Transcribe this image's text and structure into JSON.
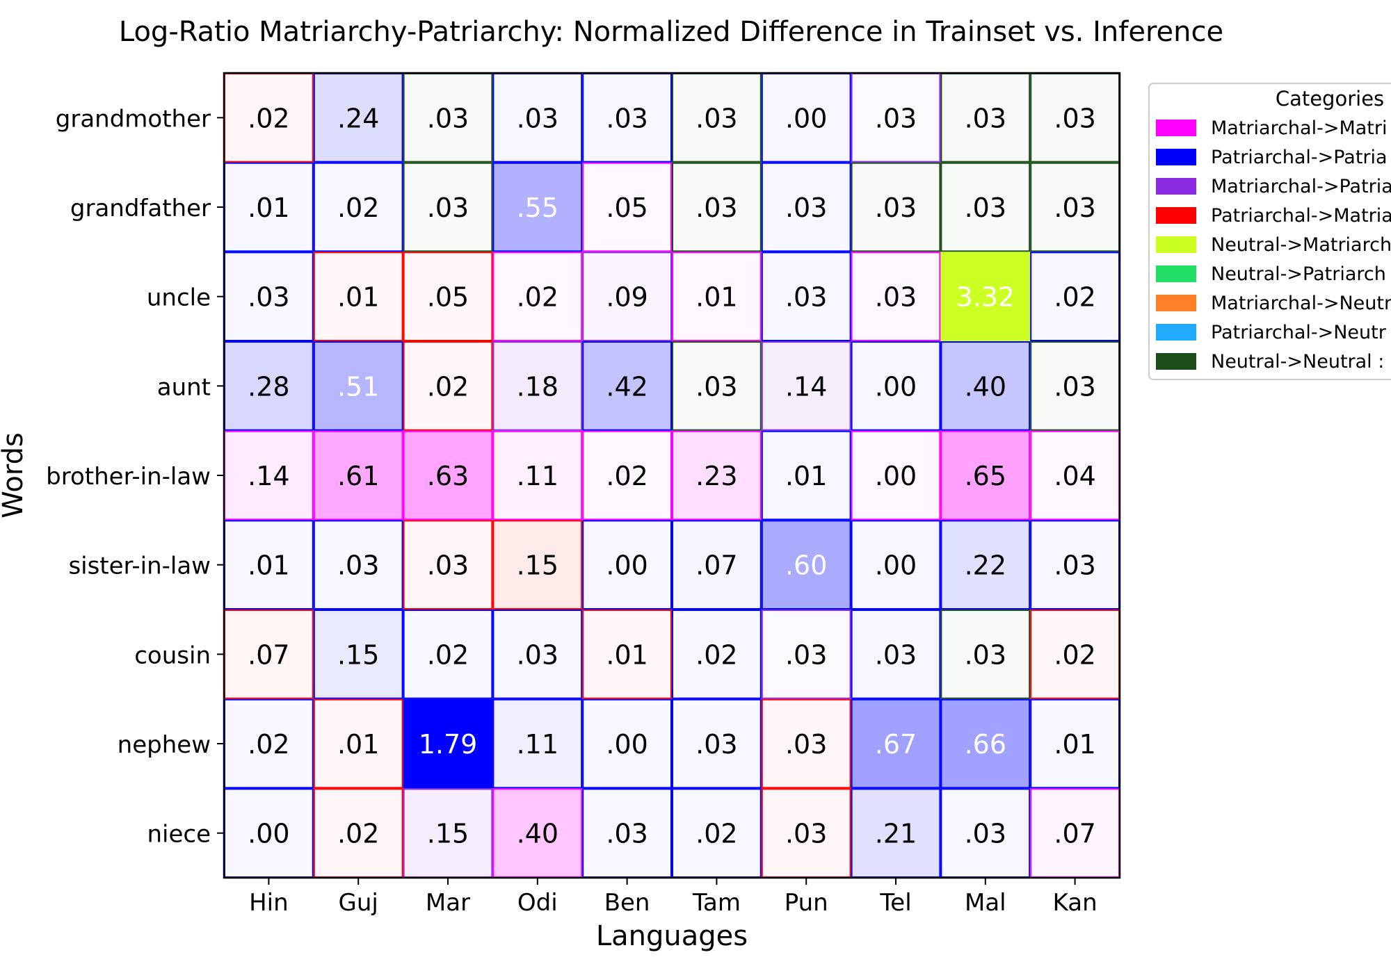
{
  "chart_data": {
    "type": "heatmap",
    "title": "Log-Ratio Matriarchy-Patriarchy: Normalized Difference in Trainset vs. Inference",
    "xlabel": "Languages",
    "ylabel": "Words",
    "columns": [
      "Hin",
      "Guj",
      "Mar",
      "Odi",
      "Ben",
      "Tam",
      "Pun",
      "Tel",
      "Mal",
      "Kan"
    ],
    "rows": [
      "grandmother",
      "grandfather",
      "uncle",
      "aunt",
      "brother-in-law",
      "sister-in-law",
      "cousin",
      "nephew",
      "niece"
    ],
    "values": [
      [
        0.02,
        0.24,
        0.03,
        0.03,
        0.03,
        0.03,
        0.0,
        0.03,
        0.03,
        0.03
      ],
      [
        0.01,
        0.02,
        0.03,
        0.55,
        0.05,
        0.03,
        0.03,
        0.03,
        0.03,
        0.03
      ],
      [
        0.03,
        0.01,
        0.05,
        0.02,
        0.09,
        0.01,
        0.03,
        0.03,
        3.32,
        0.02
      ],
      [
        0.28,
        0.51,
        0.02,
        0.18,
        0.42,
        0.03,
        0.14,
        0.0,
        0.4,
        0.03
      ],
      [
        0.14,
        0.61,
        0.63,
        0.11,
        0.02,
        0.23,
        0.01,
        0.0,
        0.65,
        0.04
      ],
      [
        0.01,
        0.03,
        0.03,
        0.15,
        0.0,
        0.07,
        0.6,
        0.0,
        0.22,
        0.03
      ],
      [
        0.07,
        0.15,
        0.02,
        0.03,
        0.01,
        0.02,
        0.03,
        0.03,
        0.03,
        0.02
      ],
      [
        0.02,
        0.01,
        1.79,
        0.11,
        0.0,
        0.03,
        0.03,
        0.67,
        0.66,
        0.01
      ],
      [
        0.0,
        0.02,
        0.15,
        0.4,
        0.03,
        0.02,
        0.03,
        0.21,
        0.03,
        0.07
      ]
    ],
    "value_labels": [
      [
        ".02",
        ".24",
        ".03",
        ".03",
        ".03",
        ".03",
        ".00",
        ".03",
        ".03",
        ".03"
      ],
      [
        ".01",
        ".02",
        ".03",
        ".55",
        ".05",
        ".03",
        ".03",
        ".03",
        ".03",
        ".03"
      ],
      [
        ".03",
        ".01",
        ".05",
        ".02",
        ".09",
        ".01",
        ".03",
        ".03",
        "3.32",
        ".02"
      ],
      [
        ".28",
        ".51",
        ".02",
        ".18",
        ".42",
        ".03",
        ".14",
        ".00",
        ".40",
        ".03"
      ],
      [
        ".14",
        ".61",
        ".63",
        ".11",
        ".02",
        ".23",
        ".01",
        ".00",
        ".65",
        ".04"
      ],
      [
        ".01",
        ".03",
        ".03",
        ".15",
        ".00",
        ".07",
        ".60",
        ".00",
        ".22",
        ".03"
      ],
      [
        ".07",
        ".15",
        ".02",
        ".03",
        ".01",
        ".02",
        ".03",
        ".03",
        ".03",
        ".02"
      ],
      [
        ".02",
        ".01",
        "1.79",
        ".11",
        ".00",
        ".03",
        ".03",
        ".67",
        ".66",
        ".01"
      ],
      [
        ".00",
        ".02",
        ".15",
        ".40",
        ".03",
        ".02",
        ".03",
        ".21",
        ".03",
        ".07"
      ]
    ],
    "cell_categories": [
      [
        "PM",
        "PP",
        "NN",
        "PP",
        "PP",
        "NN",
        "PP",
        "MP",
        "NN",
        "NN"
      ],
      [
        "PP",
        "PP",
        "NN",
        "PP",
        "MM",
        "NN",
        "PP",
        "NN",
        "NN",
        "NN"
      ],
      [
        "PP",
        "PM",
        "PM",
        "MM",
        "MP",
        "MM",
        "PP",
        "MM",
        "NM",
        "PP"
      ],
      [
        "PP",
        "PP",
        "PM",
        "MP",
        "PP",
        "NN",
        "MP",
        "PP",
        "PP",
        "NN"
      ],
      [
        "MM",
        "MM",
        "MM",
        "MM",
        "MM",
        "MM",
        "PP",
        "MM",
        "MM",
        "MM"
      ],
      [
        "PP",
        "PP",
        "PM",
        "PM",
        "PP",
        "PP",
        "PP",
        "PP",
        "PP",
        "PP"
      ],
      [
        "PM",
        "PP",
        "PP",
        "PP",
        "PM",
        "PP",
        "MP",
        "PP",
        "NN",
        "PM"
      ],
      [
        "PP",
        "PM",
        "PP",
        "PP",
        "PP",
        "PP",
        "PM",
        "PP",
        "PP",
        "PP"
      ],
      [
        "PP",
        "PM",
        "MP",
        "MM",
        "PP",
        "PP",
        "PM",
        "PP",
        "PP",
        "MM"
      ]
    ],
    "legend": {
      "title": "Categories",
      "placement": "outside-right",
      "entries": [
        {
          "key": "MM",
          "label": "Matriarchal->Matri",
          "color": "#ff00ff"
        },
        {
          "key": "PP",
          "label": "Patriarchal->Patria",
          "color": "#0000ff"
        },
        {
          "key": "MP",
          "label": "Matriarchal->Patria",
          "color": "#8a2be2"
        },
        {
          "key": "PM",
          "label": "Patriarchal->Matria",
          "color": "#ff0000"
        },
        {
          "key": "NM",
          "label": "Neutral->Matriarch",
          "color": "#ccff22"
        },
        {
          "key": "NP",
          "label": "Neutral->Patriarch",
          "color": "#22dd66"
        },
        {
          "key": "MN",
          "label": "Matriarchal->Neutr",
          "color": "#ff7f27"
        },
        {
          "key": "PN",
          "label": "Patriarchal->Neutr",
          "color": "#22aaff"
        },
        {
          "key": "NN",
          "label": "Neutral->Neutral :",
          "color": "#1a4d1a"
        }
      ]
    },
    "color_scale_max": 1.79,
    "grid": false
  }
}
